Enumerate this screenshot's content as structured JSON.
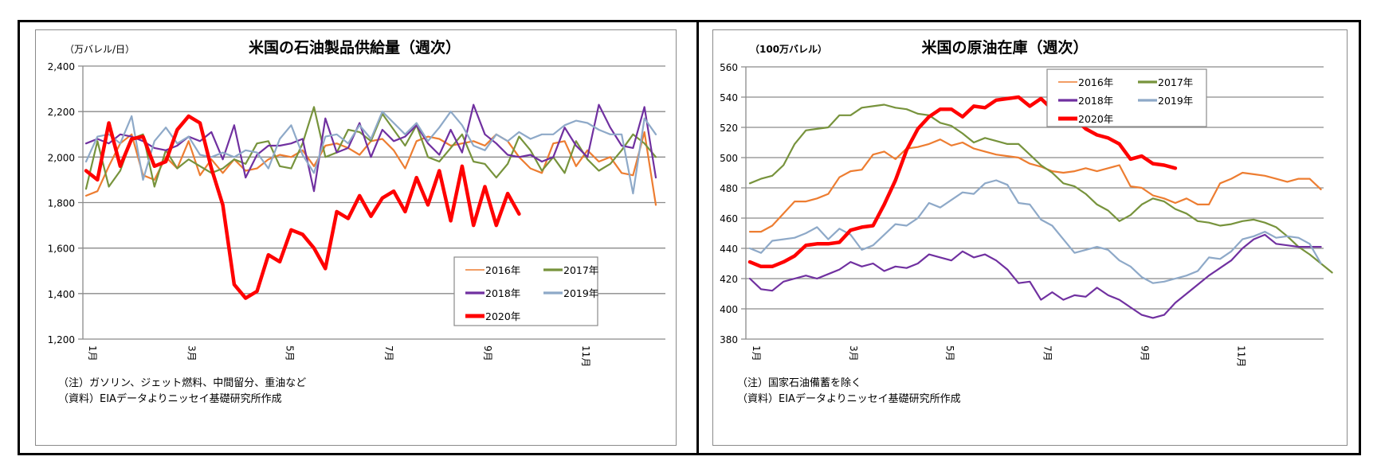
{
  "chart_data": [
    {
      "type": "line",
      "title": "米国の石油製品供給量（週次）",
      "ylabel": "（万バレル/日）",
      "xlabel": "",
      "ylim": [
        1200,
        2400
      ],
      "yticks": [
        1200,
        1400,
        1600,
        1800,
        2000,
        2200,
        2400
      ],
      "ytick_labels": [
        "1,200",
        "1,400",
        "1,600",
        "1,800",
        "2,000",
        "2,200",
        "2,400"
      ],
      "xtick_labels": [
        "1月",
        "3月",
        "5月",
        "7月",
        "9月",
        "11月"
      ],
      "xtick_weeks": [
        0,
        8.7,
        17.3,
        26,
        34.7,
        43.3
      ],
      "weeks": 52,
      "grid": true,
      "legend": {
        "placement": "bottom-right",
        "columns": 2
      },
      "series": [
        {
          "name": "2016年",
          "color": "#ED7D31",
          "width": "thin",
          "values": [
            1830,
            1850,
            1960,
            2060,
            2100,
            1920,
            1900,
            2000,
            1950,
            2070,
            1920,
            1990,
            1930,
            1990,
            1940,
            1950,
            1990,
            2010,
            2000,
            2030,
            1960,
            2050,
            2060,
            2040,
            2010,
            2070,
            2080,
            2030,
            1950,
            2070,
            2090,
            2080,
            2050,
            2060,
            2070,
            2050,
            2100,
            2070,
            2000,
            1950,
            1930,
            2060,
            2070,
            1960,
            2030,
            1980,
            2000,
            1930,
            1920,
            2110,
            1790
          ]
        },
        {
          "name": "2017年",
          "color": "#77933C",
          "width": "thin",
          "values": [
            1860,
            2070,
            1870,
            1940,
            2080,
            2100,
            1870,
            2030,
            1950,
            1990,
            1960,
            1930,
            1950,
            1990,
            1970,
            2060,
            2070,
            1960,
            1950,
            2060,
            2220,
            2000,
            2020,
            2120,
            2110,
            2070,
            2190,
            2120,
            2050,
            2140,
            2000,
            1980,
            2040,
            2100,
            1980,
            1970,
            1910,
            1970,
            2090,
            2030,
            1940,
            2000,
            1930,
            2070,
            1990,
            1940,
            1970,
            2030,
            2100,
            2060,
            2000
          ]
        },
        {
          "name": "2018年",
          "color": "#7030A0",
          "width": "thin",
          "values": [
            2060,
            2080,
            2060,
            2100,
            2090,
            2070,
            2040,
            2030,
            2050,
            2090,
            2070,
            2110,
            1990,
            2140,
            1910,
            2010,
            2050,
            2050,
            2060,
            2080,
            1850,
            2170,
            2020,
            2040,
            2150,
            2000,
            2120,
            2070,
            2090,
            2140,
            2060,
            2010,
            2120,
            2020,
            2230,
            2100,
            2060,
            2010,
            2000,
            2010,
            1980,
            2000,
            2130,
            2050,
            2000,
            2230,
            2130,
            2050,
            2040,
            2220,
            1910
          ]
        },
        {
          "name": "2019年",
          "color": "#8EA9C8",
          "width": "thin",
          "values": [
            1980,
            2090,
            2100,
            2060,
            2180,
            1900,
            2070,
            2130,
            2060,
            2090,
            2010,
            2000,
            2020,
            2000,
            2030,
            2020,
            1950,
            2080,
            2140,
            2010,
            1930,
            2090,
            2100,
            2060,
            2140,
            2080,
            2200,
            2150,
            2100,
            2150,
            2070,
            2130,
            2200,
            2140,
            2050,
            2030,
            2100,
            2070,
            2110,
            2080,
            2100,
            2100,
            2140,
            2160,
            2150,
            2120,
            2100,
            2100,
            1840,
            2170,
            2100
          ]
        },
        {
          "name": "2020年",
          "color": "#FF0000",
          "width": "thick",
          "values": [
            1940,
            1900,
            2150,
            1960,
            2080,
            2090,
            1960,
            1980,
            2120,
            2180,
            2150,
            1950,
            1790,
            1440,
            1380,
            1410,
            1570,
            1540,
            1680,
            1660,
            1600,
            1510,
            1760,
            1730,
            1830,
            1740,
            1820,
            1850,
            1760,
            1910,
            1790,
            1940,
            1720,
            1960,
            1700,
            1870,
            1700,
            1840,
            1750
          ]
        }
      ],
      "notes": [
        "（注）ガソリン、ジェット燃料、中間留分、重油など",
        "（資料）EIAデータよりニッセイ基礎研究所作成"
      ]
    },
    {
      "type": "line",
      "title": "米国の原油在庫（週次）",
      "ylabel": "（100万バレル）",
      "xlabel": "",
      "ylim": [
        380,
        560
      ],
      "yticks": [
        380,
        400,
        420,
        440,
        460,
        480,
        500,
        520,
        540,
        560
      ],
      "ytick_labels": [
        "380",
        "400",
        "420",
        "440",
        "460",
        "480",
        "500",
        "520",
        "540",
        "560"
      ],
      "xtick_labels": [
        "1月",
        "3月",
        "5月",
        "7月",
        "9月",
        "11月"
      ],
      "xtick_weeks": [
        0,
        8.7,
        17.3,
        26,
        34.7,
        43.3
      ],
      "weeks": 52,
      "grid": true,
      "legend": {
        "placement": "top-right",
        "columns": 2
      },
      "series": [
        {
          "name": "2016年",
          "color": "#ED7D31",
          "width": "thin",
          "values": [
            451,
            451,
            455,
            463,
            471,
            471,
            473,
            476,
            487,
            491,
            492,
            502,
            504,
            499,
            506,
            507,
            509,
            512,
            508,
            510,
            506,
            504,
            502,
            501,
            500,
            496,
            494,
            491,
            490,
            491,
            493,
            491,
            493,
            495,
            481,
            480,
            475,
            473,
            470,
            473,
            469,
            469,
            483,
            486,
            490,
            489,
            488,
            486,
            484,
            486,
            486,
            479
          ]
        },
        {
          "name": "2017年",
          "color": "#77933C",
          "width": "thin",
          "values": [
            483,
            486,
            488,
            495,
            509,
            518,
            519,
            520,
            528,
            528,
            533,
            534,
            535,
            533,
            532,
            529,
            528,
            523,
            521,
            516,
            510,
            513,
            511,
            509,
            509,
            502,
            495,
            490,
            483,
            481,
            476,
            469,
            465,
            458,
            462,
            469,
            473,
            471,
            466,
            463,
            458,
            457,
            455,
            456,
            458,
            459,
            457,
            454,
            448,
            441,
            436,
            430,
            424
          ]
        },
        {
          "name": "2018年",
          "color": "#7030A0",
          "width": "thin",
          "values": [
            420,
            413,
            412,
            418,
            420,
            422,
            420,
            423,
            426,
            431,
            428,
            430,
            425,
            428,
            427,
            430,
            436,
            434,
            432,
            438,
            434,
            436,
            432,
            426,
            417,
            418,
            406,
            411,
            406,
            409,
            408,
            414,
            409,
            406,
            401,
            396,
            394,
            396,
            404,
            410,
            416,
            422,
            427,
            432,
            440,
            446,
            449,
            443,
            442,
            441,
            441,
            441
          ]
        },
        {
          "name": "2019年",
          "color": "#8EA9C8",
          "width": "thin",
          "values": [
            440,
            437,
            445,
            446,
            447,
            450,
            454,
            446,
            453,
            449,
            439,
            442,
            449,
            456,
            455,
            460,
            470,
            467,
            472,
            477,
            476,
            483,
            485,
            482,
            470,
            469,
            459,
            455,
            446,
            437,
            439,
            441,
            439,
            432,
            428,
            421,
            417,
            418,
            420,
            422,
            425,
            434,
            433,
            438,
            446,
            448,
            451,
            447,
            448,
            447,
            443,
            430
          ]
        },
        {
          "name": "2020年",
          "color": "#FF0000",
          "width": "thick",
          "values": [
            431,
            428,
            428,
            431,
            435,
            442,
            443,
            443,
            444,
            452,
            454,
            455,
            469,
            485,
            505,
            519,
            527,
            532,
            532,
            527,
            534,
            533,
            538,
            539,
            540,
            534,
            539,
            532,
            536,
            526,
            519,
            515,
            513,
            509,
            499,
            501,
            496,
            495,
            493
          ]
        }
      ],
      "notes": [
        "（注）国家石油備蓄を除く",
        "（資料）EIAデータよりニッセイ基礎研究所作成"
      ]
    }
  ]
}
